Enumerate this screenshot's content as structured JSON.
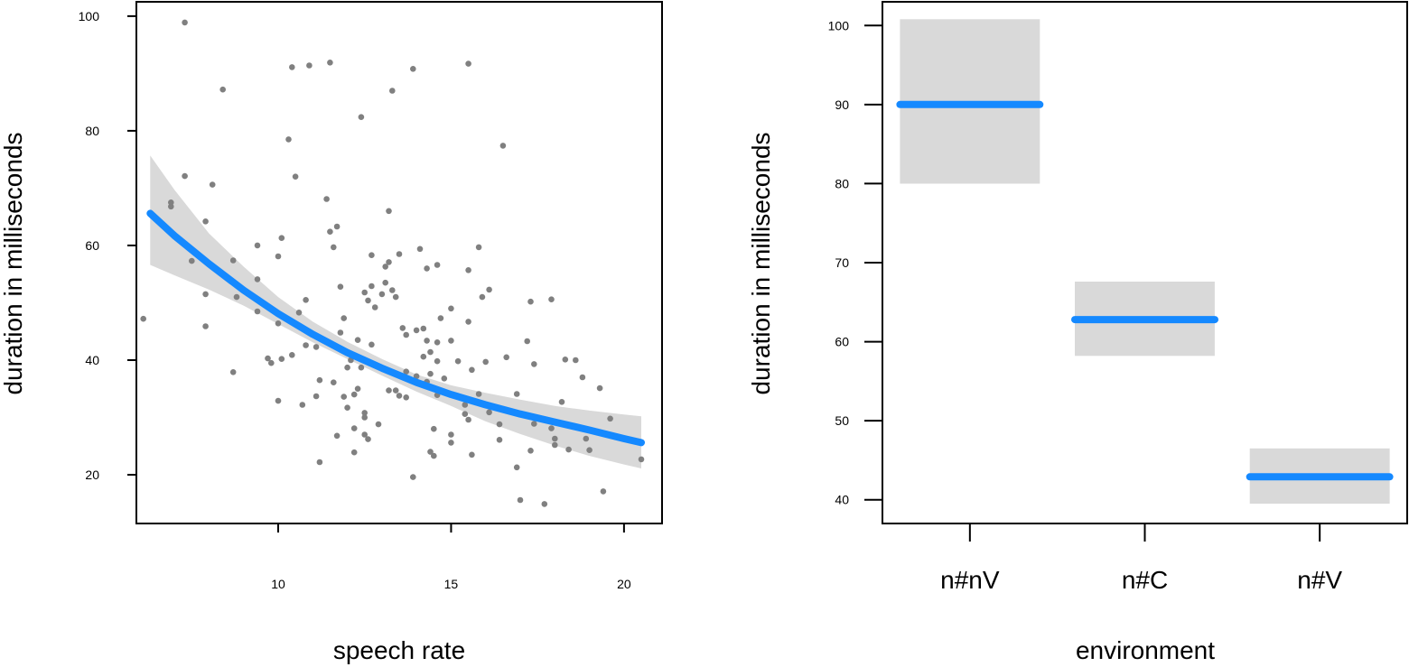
{
  "colors": {
    "fit": "#1589ff",
    "ribbon": "#d9d9d9",
    "points": "#808080",
    "axes": "#000000"
  },
  "chart_data": [
    {
      "type": "scatter",
      "xlabel": "speech rate",
      "ylabel": "duration in milliseconds",
      "xlim": [
        5.9,
        21.1
      ],
      "ylim": [
        11.5,
        102.5
      ],
      "x_ticks": [
        "10",
        "15",
        "20"
      ],
      "y_ticks": [
        "20",
        "40",
        "60",
        "80",
        "100"
      ],
      "x_tick_values": [
        10,
        15,
        20
      ],
      "y_tick_values": [
        20,
        40,
        60,
        80,
        100
      ],
      "grid": false,
      "points": [
        [
          6.1,
          47.2
        ],
        [
          6.9,
          67.5
        ],
        [
          6.9,
          66.8
        ],
        [
          7.3,
          98.9
        ],
        [
          7.3,
          72.1
        ],
        [
          7.5,
          57.3
        ],
        [
          7.9,
          64.2
        ],
        [
          7.9,
          51.5
        ],
        [
          7.9,
          45.9
        ],
        [
          8.1,
          70.6
        ],
        [
          8.4,
          87.2
        ],
        [
          8.7,
          57.4
        ],
        [
          8.8,
          51.0
        ],
        [
          8.7,
          37.9
        ],
        [
          9.4,
          60.0
        ],
        [
          9.4,
          54.1
        ],
        [
          9.4,
          48.5
        ],
        [
          9.7,
          40.3
        ],
        [
          9.8,
          39.5
        ],
        [
          10.0,
          58.1
        ],
        [
          10.0,
          46.4
        ],
        [
          10.0,
          32.9
        ],
        [
          10.1,
          61.3
        ],
        [
          10.1,
          40.2
        ],
        [
          10.3,
          78.5
        ],
        [
          10.4,
          91.1
        ],
        [
          10.4,
          40.9
        ],
        [
          10.5,
          72.0
        ],
        [
          10.6,
          48.3
        ],
        [
          10.7,
          32.2
        ],
        [
          10.8,
          50.5
        ],
        [
          10.8,
          42.6
        ],
        [
          10.9,
          91.4
        ],
        [
          11.1,
          33.7
        ],
        [
          11.1,
          42.3
        ],
        [
          11.2,
          22.2
        ],
        [
          11.2,
          36.5
        ],
        [
          11.4,
          68.1
        ],
        [
          11.5,
          91.9
        ],
        [
          11.5,
          62.4
        ],
        [
          11.6,
          59.7
        ],
        [
          11.6,
          36.1
        ],
        [
          11.7,
          63.3
        ],
        [
          11.7,
          26.8
        ],
        [
          11.8,
          52.8
        ],
        [
          11.8,
          44.8
        ],
        [
          11.9,
          47.3
        ],
        [
          11.9,
          33.6
        ],
        [
          12.0,
          31.7
        ],
        [
          12.0,
          38.7
        ],
        [
          12.1,
          40.0
        ],
        [
          12.2,
          34.0
        ],
        [
          12.2,
          23.9
        ],
        [
          12.2,
          28.1
        ],
        [
          12.3,
          43.5
        ],
        [
          12.3,
          35.0
        ],
        [
          12.4,
          82.4
        ],
        [
          12.4,
          38.7
        ],
        [
          12.5,
          30.8
        ],
        [
          12.5,
          30.0
        ],
        [
          12.5,
          27.0
        ],
        [
          12.6,
          26.2
        ],
        [
          12.5,
          51.8
        ],
        [
          12.6,
          50.4
        ],
        [
          12.7,
          58.3
        ],
        [
          12.7,
          52.9
        ],
        [
          12.7,
          42.7
        ],
        [
          12.8,
          49.2
        ],
        [
          12.9,
          28.8
        ],
        [
          13.0,
          51.5
        ],
        [
          13.1,
          56.3
        ],
        [
          13.1,
          53.5
        ],
        [
          13.2,
          57.1
        ],
        [
          13.2,
          66.0
        ],
        [
          13.2,
          34.7
        ],
        [
          13.3,
          52.2
        ],
        [
          13.3,
          87.0
        ],
        [
          13.4,
          51.0
        ],
        [
          13.4,
          34.7
        ],
        [
          13.5,
          58.5
        ],
        [
          13.5,
          33.8
        ],
        [
          13.6,
          45.6
        ],
        [
          13.7,
          33.5
        ],
        [
          13.7,
          44.4
        ],
        [
          13.7,
          38.0
        ],
        [
          13.9,
          90.8
        ],
        [
          13.9,
          19.6
        ],
        [
          14.0,
          37.2
        ],
        [
          14.0,
          45.2
        ],
        [
          14.1,
          59.4
        ],
        [
          14.2,
          40.6
        ],
        [
          14.2,
          45.5
        ],
        [
          14.3,
          56.0
        ],
        [
          14.3,
          43.4
        ],
        [
          14.3,
          36.2
        ],
        [
          14.4,
          37.6
        ],
        [
          14.4,
          41.4
        ],
        [
          14.4,
          24.0
        ],
        [
          14.5,
          23.3
        ],
        [
          14.5,
          28.0
        ],
        [
          14.6,
          56.6
        ],
        [
          14.6,
          43.1
        ],
        [
          14.6,
          39.8
        ],
        [
          14.6,
          33.9
        ],
        [
          14.7,
          47.3
        ],
        [
          14.8,
          36.8
        ],
        [
          15.0,
          49.0
        ],
        [
          15.0,
          43.4
        ],
        [
          15.0,
          25.6
        ],
        [
          15.0,
          27.0
        ],
        [
          15.2,
          39.8
        ],
        [
          15.3,
          33.5
        ],
        [
          15.4,
          32.2
        ],
        [
          15.4,
          30.6
        ],
        [
          15.5,
          91.7
        ],
        [
          15.5,
          55.7
        ],
        [
          15.5,
          46.7
        ],
        [
          15.5,
          29.6
        ],
        [
          15.6,
          23.5
        ],
        [
          15.6,
          38.3
        ],
        [
          15.8,
          59.7
        ],
        [
          15.8,
          34.1
        ],
        [
          15.9,
          51.0
        ],
        [
          16.0,
          39.7
        ],
        [
          16.1,
          52.3
        ],
        [
          16.1,
          30.9
        ],
        [
          16.4,
          28.8
        ],
        [
          16.4,
          26.1
        ],
        [
          16.5,
          77.4
        ],
        [
          16.6,
          40.5
        ],
        [
          16.9,
          21.3
        ],
        [
          16.9,
          34.1
        ],
        [
          17.0,
          15.6
        ],
        [
          17.2,
          43.3
        ],
        [
          17.3,
          50.2
        ],
        [
          17.3,
          24.2
        ],
        [
          17.4,
          39.3
        ],
        [
          17.4,
          28.9
        ],
        [
          17.7,
          14.9
        ],
        [
          17.9,
          50.6
        ],
        [
          17.9,
          28.1
        ],
        [
          18.0,
          26.3
        ],
        [
          18.0,
          25.2
        ],
        [
          18.2,
          32.7
        ],
        [
          18.3,
          40.1
        ],
        [
          18.4,
          24.4
        ],
        [
          18.6,
          40.0
        ],
        [
          18.8,
          37.0
        ],
        [
          18.9,
          26.3
        ],
        [
          19.0,
          24.3
        ],
        [
          19.3,
          35.1
        ],
        [
          19.4,
          17.1
        ],
        [
          19.6,
          29.8
        ],
        [
          20.5,
          22.7
        ]
      ],
      "fit": {
        "x": [
          6.3,
          7.0,
          8.0,
          9.0,
          10.0,
          11.0,
          12.0,
          13.0,
          14.0,
          15.0,
          16.0,
          17.0,
          18.0,
          19.0,
          20.0,
          20.5
        ],
        "y": [
          65.6,
          61.7,
          56.8,
          52.2,
          48.1,
          44.5,
          41.3,
          38.6,
          36.1,
          34.0,
          32.2,
          30.6,
          29.2,
          27.8,
          26.3,
          25.6
        ],
        "lo": [
          56.6,
          54.8,
          52.3,
          49.5,
          46.3,
          43.1,
          40.2,
          37.3,
          34.5,
          32.0,
          29.3,
          27.1,
          25.1,
          23.3,
          21.8,
          21.1
        ],
        "hi": [
          75.7,
          69.7,
          62.1,
          56.3,
          51.0,
          46.7,
          43.2,
          40.2,
          37.5,
          35.6,
          34.3,
          33.1,
          32.0,
          31.2,
          30.5,
          30.2
        ]
      }
    },
    {
      "type": "bar",
      "xlabel": "environment",
      "ylabel": "duration in milliseconds",
      "categories": [
        "n#nV",
        "n#C",
        "n#V"
      ],
      "values": [
        90.0,
        62.8,
        42.9
      ],
      "ci_low": [
        80.0,
        58.2,
        39.5
      ],
      "ci_high": [
        100.8,
        67.6,
        46.5
      ],
      "ylim": [
        37.0,
        103.0
      ],
      "y_ticks": [
        "40",
        "50",
        "60",
        "70",
        "80",
        "90",
        "100"
      ],
      "y_tick_values": [
        40,
        50,
        60,
        70,
        80,
        90,
        100
      ],
      "grid": false
    }
  ]
}
